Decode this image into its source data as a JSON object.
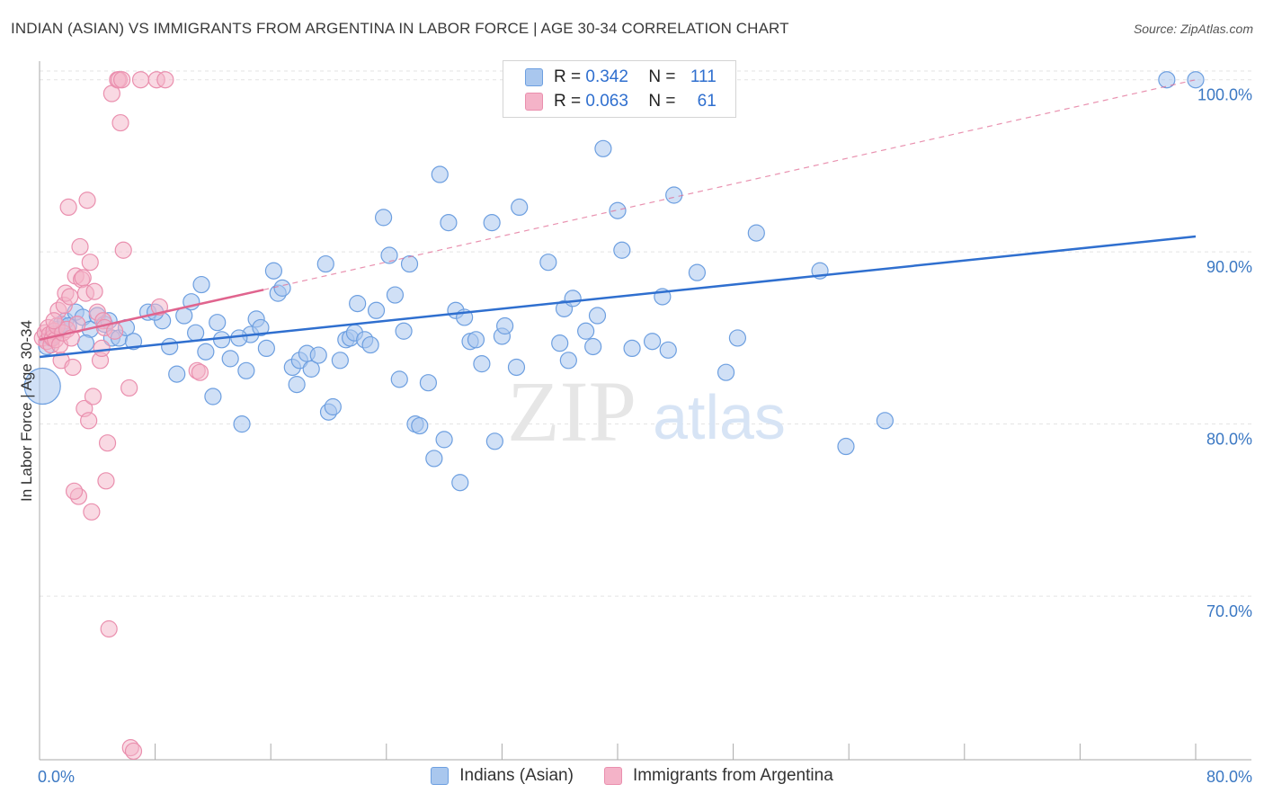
{
  "title": "INDIAN (ASIAN) VS IMMIGRANTS FROM ARGENTINA IN LABOR FORCE | AGE 30-34 CORRELATION CHART",
  "source": "Source: ZipAtlas.com",
  "watermark": {
    "zip": "ZIP",
    "atlas": "atlas"
  },
  "legend_top": [
    {
      "r_label": "R =",
      "r_value": "0.342",
      "n_label": "N =",
      "n_value": "111"
    },
    {
      "r_label": "R =",
      "r_value": "0.063",
      "n_label": "N =",
      "n_value": "61"
    }
  ],
  "bottom_legend": [
    "Indians (Asian)",
    "Immigrants from Argentina"
  ],
  "colors": {
    "blue_fill": "#a9c7ee",
    "blue_stroke": "#6d9fe0",
    "blue_line": "#2f6fcf",
    "pink_fill": "#f4b3c8",
    "pink_stroke": "#ea8fae",
    "pink_line": "#e0648e",
    "tick_text": "#3b78c3",
    "grid": "#e3e3e3"
  },
  "chart_data": {
    "type": "scatter",
    "title": "INDIAN (ASIAN) VS IMMIGRANTS FROM ARGENTINA IN LABOR FORCE | AGE 30-34 CORRELATION CHART",
    "xlabel": "",
    "ylabel": "In Labor Force | Age 30-34",
    "xlim": [
      0,
      80
    ],
    "ylim": [
      60.5,
      101.5
    ],
    "x_tick_labels": [
      {
        "value": 0,
        "label": "0.0%"
      },
      {
        "value": 80,
        "label": "80.0%"
      }
    ],
    "y_tick_labels": [
      {
        "value": 100,
        "label": "100.0%"
      },
      {
        "value": 90,
        "label": "90.0%"
      },
      {
        "value": 80,
        "label": "80.0%"
      },
      {
        "value": 70,
        "label": "70.0%"
      }
    ],
    "grid": true,
    "legend_position": "top-center",
    "series": [
      {
        "name": "Indians (Asian)",
        "r": 0.342,
        "n": 111,
        "trend": {
          "x": [
            0,
            80
          ],
          "y": [
            83.9,
            90.9
          ],
          "style": "solid"
        },
        "points": [
          [
            0.2,
            82.2
          ],
          [
            0.5,
            84.5
          ],
          [
            0.8,
            85.0
          ],
          [
            1.2,
            85.5
          ],
          [
            1.5,
            85.8
          ],
          [
            1.8,
            86.0
          ],
          [
            2.5,
            86.5
          ],
          [
            3.0,
            86.2
          ],
          [
            3.5,
            85.5
          ],
          [
            4.0,
            86.3
          ],
          [
            4.5,
            85.8
          ],
          [
            5.0,
            85.0
          ],
          [
            5.5,
            85.0
          ],
          [
            6.0,
            85.6
          ],
          [
            6.5,
            84.8
          ],
          [
            7.5,
            86.5
          ],
          [
            8.5,
            86.0
          ],
          [
            9.5,
            82.9
          ],
          [
            10.0,
            86.3
          ],
          [
            10.5,
            87.1
          ],
          [
            10.8,
            85.3
          ],
          [
            11.2,
            88.1
          ],
          [
            11.5,
            84.2
          ],
          [
            12.0,
            81.6
          ],
          [
            12.3,
            85.9
          ],
          [
            12.6,
            84.9
          ],
          [
            13.2,
            83.8
          ],
          [
            14.0,
            80.0
          ],
          [
            14.3,
            83.1
          ],
          [
            14.6,
            85.2
          ],
          [
            15.0,
            86.1
          ],
          [
            15.3,
            85.6
          ],
          [
            15.7,
            84.4
          ],
          [
            16.2,
            88.9
          ],
          [
            16.5,
            87.6
          ],
          [
            16.8,
            87.9
          ],
          [
            17.5,
            83.3
          ],
          [
            17.8,
            82.3
          ],
          [
            18.0,
            83.7
          ],
          [
            18.5,
            84.1
          ],
          [
            18.8,
            83.2
          ],
          [
            19.3,
            84.0
          ],
          [
            19.8,
            89.3
          ],
          [
            20.0,
            80.7
          ],
          [
            20.3,
            81.0
          ],
          [
            20.8,
            83.7
          ],
          [
            21.2,
            84.9
          ],
          [
            21.5,
            85.0
          ],
          [
            21.8,
            85.3
          ],
          [
            22.0,
            87.0
          ],
          [
            22.5,
            84.9
          ],
          [
            22.9,
            84.6
          ],
          [
            23.3,
            86.6
          ],
          [
            23.8,
            92.0
          ],
          [
            24.2,
            89.8
          ],
          [
            24.6,
            87.5
          ],
          [
            24.9,
            82.6
          ],
          [
            25.2,
            85.4
          ],
          [
            25.6,
            89.3
          ],
          [
            26.0,
            80.0
          ],
          [
            26.3,
            79.9
          ],
          [
            26.9,
            82.4
          ],
          [
            27.3,
            78.0
          ],
          [
            27.7,
            94.5
          ],
          [
            28.0,
            79.1
          ],
          [
            28.3,
            91.7
          ],
          [
            28.8,
            86.6
          ],
          [
            29.1,
            76.6
          ],
          [
            29.4,
            86.2
          ],
          [
            29.8,
            84.8
          ],
          [
            30.2,
            84.9
          ],
          [
            30.6,
            83.5
          ],
          [
            31.3,
            91.7
          ],
          [
            31.5,
            79.0
          ],
          [
            32.0,
            85.1
          ],
          [
            32.2,
            85.7
          ],
          [
            33.0,
            83.3
          ],
          [
            33.2,
            92.6
          ],
          [
            35.2,
            89.4
          ],
          [
            36.0,
            84.7
          ],
          [
            36.3,
            86.7
          ],
          [
            36.6,
            83.7
          ],
          [
            36.9,
            87.3
          ],
          [
            37.8,
            85.4
          ],
          [
            38.3,
            84.5
          ],
          [
            38.6,
            86.3
          ],
          [
            39.0,
            96.0
          ],
          [
            40.0,
            92.4
          ],
          [
            40.3,
            90.1
          ],
          [
            41.0,
            84.4
          ],
          [
            42.4,
            84.8
          ],
          [
            43.1,
            87.4
          ],
          [
            43.5,
            84.3
          ],
          [
            43.9,
            93.3
          ],
          [
            45.5,
            88.8
          ],
          [
            47.5,
            83.0
          ],
          [
            48.3,
            85.0
          ],
          [
            49.6,
            91.1
          ],
          [
            54.0,
            88.9
          ],
          [
            55.8,
            78.7
          ],
          [
            58.5,
            80.2
          ],
          [
            78.0,
            100.0
          ],
          [
            80.0,
            100.0
          ],
          [
            47.6,
            100.0
          ],
          [
            2.0,
            85.7
          ],
          [
            4.8,
            86.0
          ],
          [
            8.0,
            86.5
          ],
          [
            9.0,
            84.5
          ],
          [
            3.2,
            84.7
          ],
          [
            13.8,
            85.0
          ],
          [
            1.0,
            85.2
          ]
        ]
      },
      {
        "name": "Immigrants from Argentina",
        "r": 0.063,
        "n": 61,
        "trend": {
          "x": [
            0,
            15.5
          ],
          "y": [
            84.9,
            87.8
          ],
          "style": "solid"
        },
        "trend_extended": {
          "x": [
            15.5,
            80
          ],
          "y": [
            87.8,
            100.0
          ],
          "style": "dashed"
        },
        "points": [
          [
            0.2,
            85.0
          ],
          [
            0.4,
            85.3
          ],
          [
            0.5,
            84.8
          ],
          [
            0.6,
            85.6
          ],
          [
            0.7,
            85.2
          ],
          [
            0.8,
            84.6
          ],
          [
            0.9,
            85.0
          ],
          [
            1.0,
            85.4
          ],
          [
            1.1,
            84.9
          ],
          [
            1.2,
            85.7
          ],
          [
            1.3,
            86.6
          ],
          [
            1.4,
            84.6
          ],
          [
            1.5,
            83.7
          ],
          [
            1.6,
            85.3
          ],
          [
            1.7,
            86.9
          ],
          [
            1.8,
            87.6
          ],
          [
            1.9,
            85.5
          ],
          [
            2.0,
            92.6
          ],
          [
            2.1,
            87.4
          ],
          [
            2.2,
            85.0
          ],
          [
            2.3,
            83.3
          ],
          [
            2.5,
            88.6
          ],
          [
            2.6,
            85.8
          ],
          [
            2.7,
            75.8
          ],
          [
            2.8,
            90.3
          ],
          [
            2.9,
            88.4
          ],
          [
            3.0,
            88.5
          ],
          [
            3.1,
            80.9
          ],
          [
            3.2,
            87.6
          ],
          [
            3.3,
            93.0
          ],
          [
            3.4,
            80.2
          ],
          [
            3.5,
            89.4
          ],
          [
            3.6,
            74.9
          ],
          [
            3.7,
            81.6
          ],
          [
            3.8,
            87.7
          ],
          [
            4.0,
            86.5
          ],
          [
            4.2,
            83.7
          ],
          [
            4.3,
            84.4
          ],
          [
            4.4,
            86.0
          ],
          [
            4.5,
            85.6
          ],
          [
            4.6,
            76.7
          ],
          [
            4.7,
            78.9
          ],
          [
            4.8,
            68.1
          ],
          [
            5.0,
            99.2
          ],
          [
            5.2,
            85.4
          ],
          [
            5.4,
            100.0
          ],
          [
            5.5,
            100.0
          ],
          [
            5.6,
            97.5
          ],
          [
            5.7,
            100.0
          ],
          [
            5.8,
            90.1
          ],
          [
            6.2,
            82.1
          ],
          [
            6.3,
            61.2
          ],
          [
            6.5,
            61.0
          ],
          [
            7.0,
            100.0
          ],
          [
            8.1,
            100.0
          ],
          [
            8.7,
            100.0
          ],
          [
            8.3,
            86.8
          ],
          [
            10.9,
            83.1
          ],
          [
            11.1,
            83.0
          ],
          [
            2.4,
            76.1
          ],
          [
            1.0,
            86.0
          ]
        ]
      }
    ]
  }
}
